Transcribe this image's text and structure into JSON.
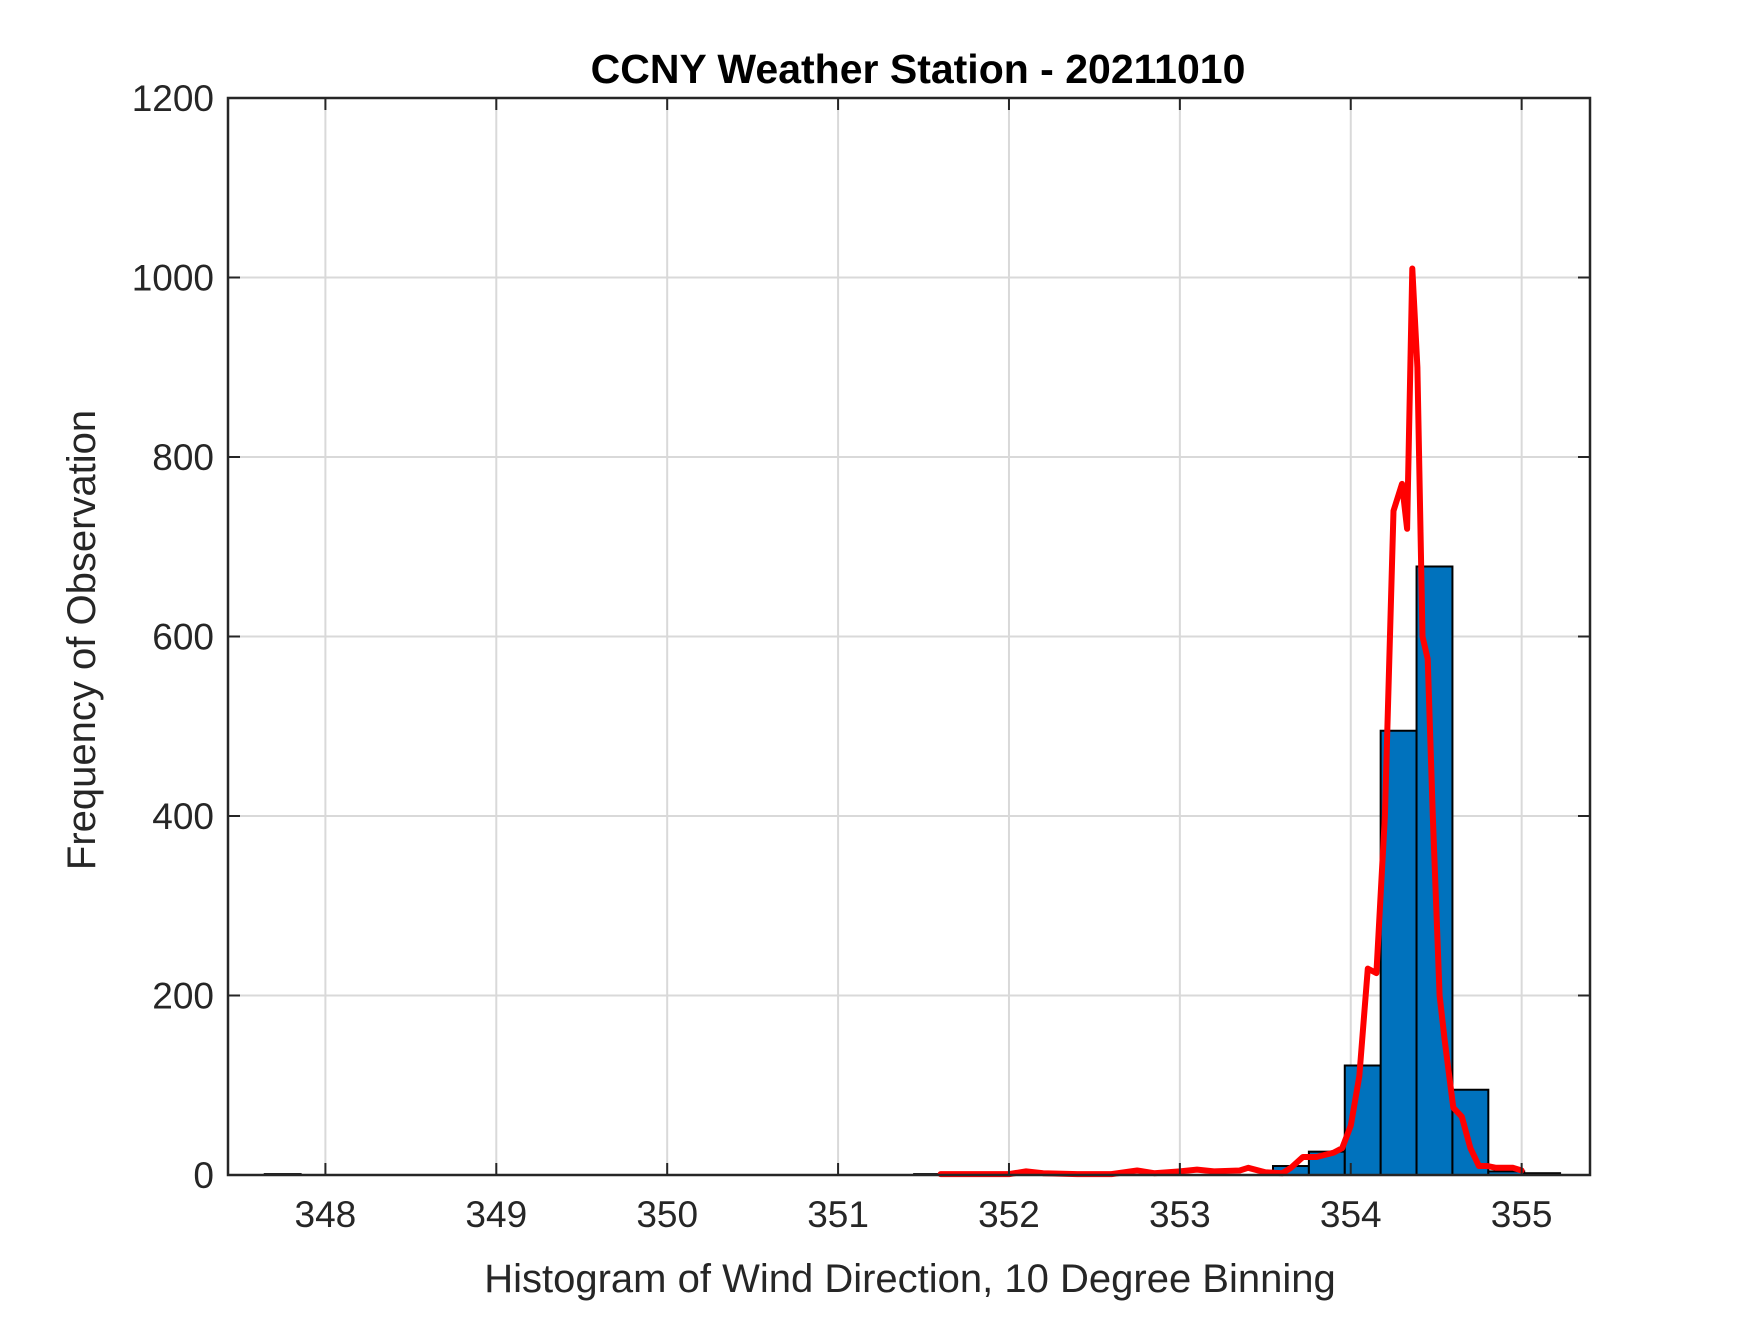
{
  "chart_data": {
    "type": "bar",
    "title": "CCNY Weather Station - 20211010",
    "xlabel": "Histogram of Wind Direction, 10 Degree Binning",
    "ylabel": "Frequency of Observation",
    "xlim": [
      347.43,
      355.4
    ],
    "ylim": [
      0,
      1200
    ],
    "xticks": [
      348,
      349,
      350,
      351,
      352,
      353,
      354,
      355
    ],
    "yticks": [
      0,
      200,
      400,
      600,
      800,
      1000,
      1200
    ],
    "grid": true,
    "bar_width": 0.21,
    "bars": [
      {
        "x": 347.75,
        "value": 1
      },
      {
        "x": 351.55,
        "value": 1
      },
      {
        "x": 353.65,
        "value": 10
      },
      {
        "x": 353.86,
        "value": 26
      },
      {
        "x": 354.07,
        "value": 122
      },
      {
        "x": 354.28,
        "value": 495
      },
      {
        "x": 354.49,
        "value": 678
      },
      {
        "x": 354.7,
        "value": 95
      },
      {
        "x": 354.91,
        "value": 4
      },
      {
        "x": 355.12,
        "value": 2
      }
    ],
    "series": [
      {
        "type": "line",
        "x": [
          351.6,
          352.0,
          352.1,
          352.2,
          352.4,
          352.6,
          352.75,
          352.85,
          353.0,
          353.1,
          353.2,
          353.35,
          353.4,
          353.5,
          353.6,
          353.65,
          353.72,
          353.8,
          353.9,
          353.95,
          354.0,
          354.05,
          354.1,
          354.15,
          354.2,
          354.25,
          354.3,
          354.33,
          354.36,
          354.39,
          354.42,
          354.45,
          354.48,
          354.5,
          354.52,
          354.55,
          354.6,
          354.65,
          354.7,
          354.75,
          354.8,
          354.85,
          354.95,
          355.0
        ],
        "y": [
          1,
          1,
          4,
          2,
          1,
          1,
          5,
          2,
          4,
          6,
          4,
          5,
          8,
          3,
          2,
          8,
          20,
          20,
          25,
          30,
          55,
          110,
          230,
          225,
          400,
          740,
          770,
          720,
          1010,
          900,
          600,
          575,
          400,
          300,
          200,
          150,
          75,
          65,
          30,
          10,
          10,
          8,
          8,
          5
        ]
      }
    ],
    "colors": {
      "bar_fill": "#0072BD",
      "bar_edge": "#000000",
      "line": "#FF0000",
      "grid": "#D9D9D9",
      "axis": "#262626"
    }
  }
}
